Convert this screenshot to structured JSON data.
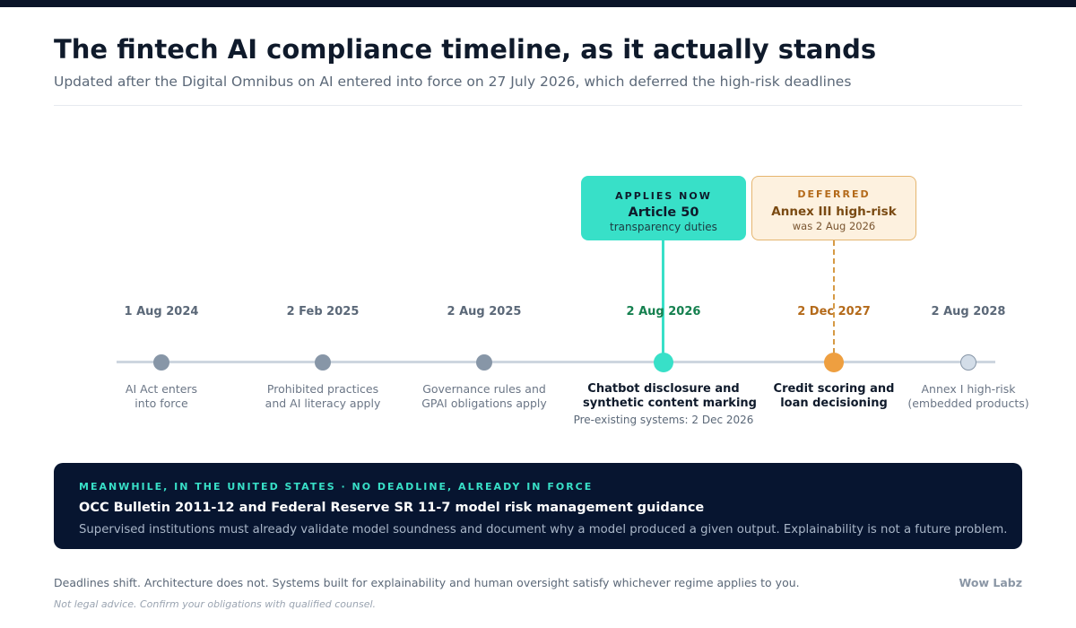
{
  "header": {
    "title": "The fintech AI compliance timeline, as it actually stands",
    "subtitle": "Updated after the Digital Omnibus on AI entered into force on 27 July 2026, which deferred the high-risk deadlines"
  },
  "milestones": [
    {
      "date": "1 Aug 2024",
      "label_lines": [
        "AI Act enters",
        "into force"
      ],
      "status": "past"
    },
    {
      "date": "2 Feb 2025",
      "label_lines": [
        "Prohibited practices",
        "and AI literacy apply"
      ],
      "status": "past"
    },
    {
      "date": "2 Aug 2025",
      "label_lines": [
        "Governance rules and",
        "GPAI obligations apply"
      ],
      "status": "past"
    },
    {
      "date": "2 Aug 2026",
      "label_lines": [
        "Chatbot disclosure and",
        "synthetic content marking"
      ],
      "note": "Pre-existing systems: 2 Dec 2026",
      "status": "now"
    },
    {
      "date": "2 Dec 2027",
      "label_lines": [
        "Credit scoring and",
        "loan decisioning"
      ],
      "status": "deferred"
    },
    {
      "date": "2 Aug 2028",
      "label_lines": [
        "Annex I high-risk",
        "(embedded products)"
      ],
      "status": "future"
    }
  ],
  "callouts": {
    "now": {
      "tag": "APPLIES NOW",
      "title": "Article 50",
      "sub": "transparency duties"
    },
    "deferred": {
      "tag": "DEFERRED",
      "title": "Annex III high-risk",
      "sub": "was 2 Aug 2026"
    }
  },
  "us_panel": {
    "tag": "MEANWHILE, IN THE UNITED STATES · NO DEADLINE, ALREADY IN FORCE",
    "title": "OCC Bulletin 2011-12 and Federal Reserve SR 11-7 model risk management guidance",
    "body": "Supervised institutions must already validate model soundness and document why a model produced a given output. Explainability is not a future problem."
  },
  "footer": {
    "text": "Deadlines shift. Architecture does not. Systems built for explainability and human oversight satisfy whichever regime applies to you.",
    "brand": "Wow Labz",
    "disclaimer": "Not legal advice. Confirm your obligations with qualified counsel."
  },
  "colors": {
    "navy": "#071530",
    "applies_now": "#38e0c8",
    "deferred": "#ee9f40",
    "past": "#8796a7"
  }
}
